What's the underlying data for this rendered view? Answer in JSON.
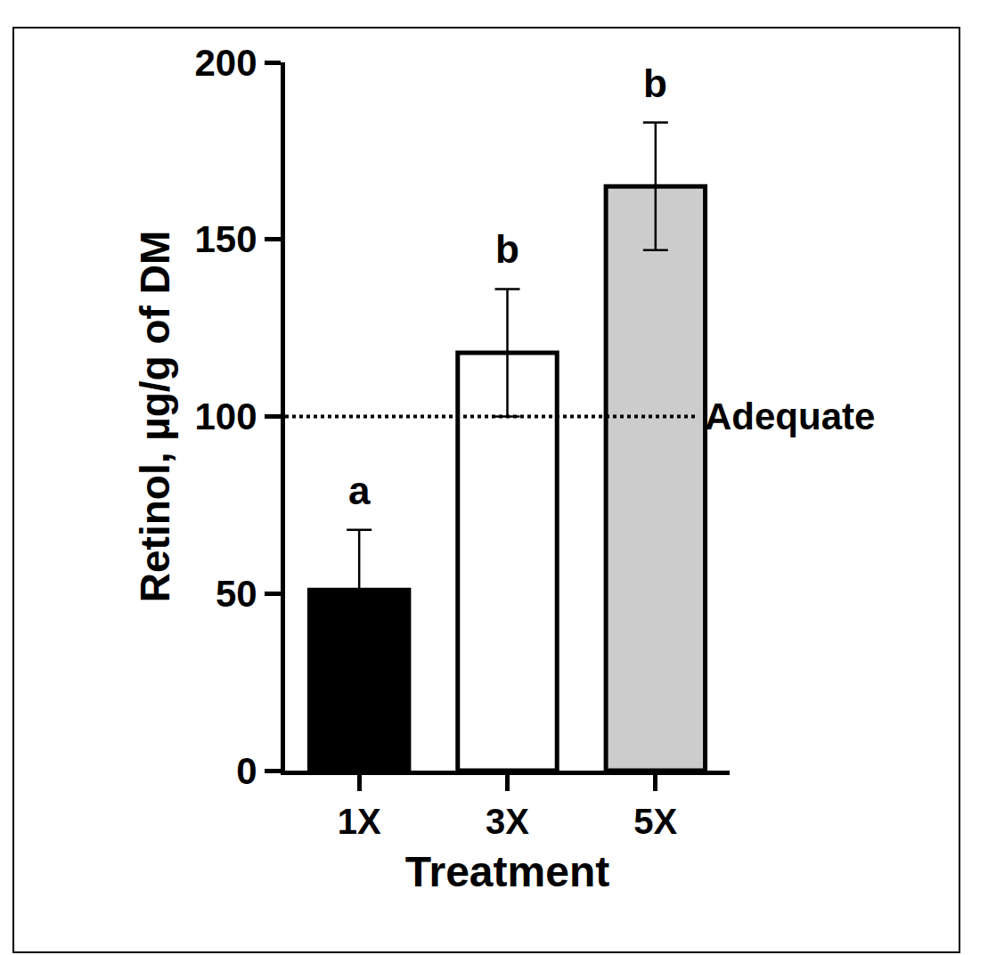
{
  "chart_data": {
    "type": "bar",
    "categories": [
      "1X",
      "3X",
      "5X"
    ],
    "values": [
      51,
      118,
      165
    ],
    "errors": [
      17,
      18,
      18
    ],
    "colors": [
      "#000000",
      "#ffffff",
      "#cccccc"
    ],
    "significance_letters": [
      "a",
      "b",
      "b"
    ],
    "reference_line": {
      "value": 100,
      "label": "Adequate"
    },
    "x_label": "Treatment",
    "y_label": "Retinol, µg/g of DM",
    "ylim": [
      0,
      200
    ],
    "yticks": [
      0,
      50,
      100,
      150,
      200
    ],
    "grid": false
  }
}
